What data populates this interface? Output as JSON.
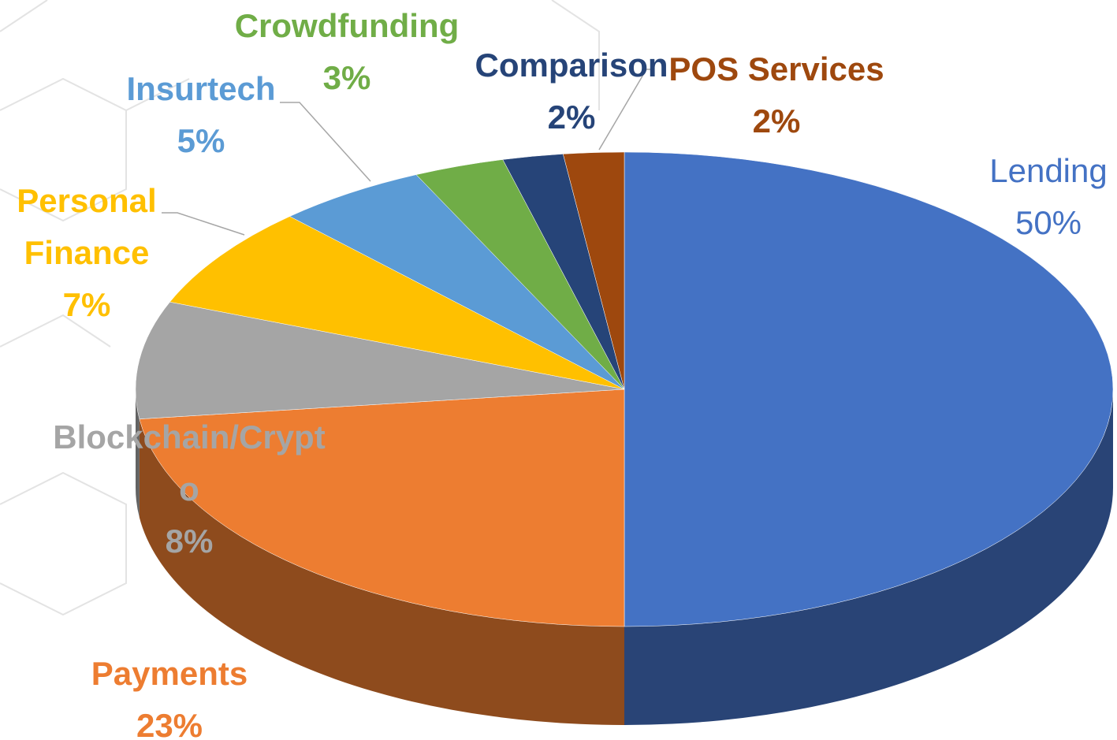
{
  "chart_data": {
    "type": "pie",
    "categories": [
      "Lending",
      "Payments",
      "Blockchain/Crypto",
      "Personal Finance",
      "Insurtech",
      "Crowdfunding",
      "Comparison",
      "POS Services"
    ],
    "values": [
      50,
      23,
      8,
      7,
      5,
      3,
      2,
      2
    ],
    "value_labels": [
      "50%",
      "23%",
      "8%",
      "7%",
      "5%",
      "3%",
      "2%",
      "2%"
    ],
    "colors": [
      "#4472c4",
      "#ed7d31",
      "#a5a5a5",
      "#ffc000",
      "#5b9bd5",
      "#70ad47",
      "#264478",
      "#9e480e"
    ]
  }
}
